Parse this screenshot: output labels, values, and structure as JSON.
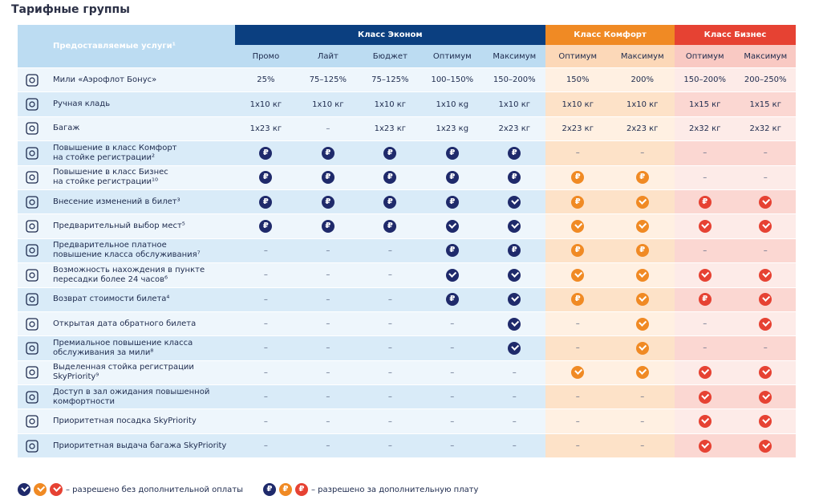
{
  "page_title": "Тарифные группы",
  "header": {
    "services_label": "Предоставляемые услуги¹",
    "groups": [
      {
        "label": "Класс Эконом",
        "span": 5,
        "color": "#0b3f80"
      },
      {
        "label": "Класс Комфорт",
        "span": 2,
        "color": "#f08a24"
      },
      {
        "label": "Класс Бизнес",
        "span": 2,
        "color": "#e64233"
      }
    ],
    "subheaders": [
      "Промо",
      "Лайт",
      "Бюджет",
      "Оптимум",
      "Максимум",
      "Оптимум",
      "Максимум",
      "Оптимум",
      "Максимум"
    ]
  },
  "rows": [
    {
      "icon": "miles-icon",
      "label": "Мили «Аэрофлот Бонус»",
      "cells": [
        "25%",
        "75–125%",
        "75–125%",
        "100–150%",
        "150–200%",
        "150%",
        "200%",
        "150–200%",
        "200–250%"
      ]
    },
    {
      "icon": "carry-on-icon",
      "label": "Ручная кладь",
      "cells": [
        "1x10 кг",
        "1x10 кг",
        "1x10 кг",
        "1x10 кg",
        "1x10 кг",
        "1x10 кг",
        "1x10 кг",
        "1x15 кг",
        "1x15 кг"
      ]
    },
    {
      "icon": "baggage-icon",
      "label": "Багаж",
      "cells": [
        "1x23 кг",
        "–",
        "1x23 кг",
        "1x23 кg",
        "2x23 кг",
        "2x23 кг",
        "2x23 кг",
        "2x32 кг",
        "2x32 кг"
      ]
    },
    {
      "icon": "comfort-upgrade-icon",
      "label": "Повышение в класс Комфорт\nна стойке регистрации²",
      "cells": [
        "P",
        "P",
        "P",
        "P",
        "P",
        "–",
        "–",
        "–",
        "–"
      ]
    },
    {
      "icon": "business-upgrade-icon",
      "label": "Повышение в класс Бизнес\nна стойке регистрации¹⁰",
      "cells": [
        "P",
        "P",
        "P",
        "P",
        "P",
        "P",
        "P",
        "–",
        "–"
      ]
    },
    {
      "icon": "ticket-change-icon",
      "label": "Внесение изменений в билет³",
      "cells": [
        "P",
        "P",
        "P",
        "P",
        "V",
        "P",
        "V",
        "P",
        "V"
      ]
    },
    {
      "icon": "seat-select-icon",
      "label": "Предварительный выбор мест⁵",
      "cells": [
        "P",
        "P",
        "P",
        "V",
        "V",
        "V",
        "V",
        "V",
        "V"
      ]
    },
    {
      "icon": "paid-upgrade-icon",
      "label": "Предварительное платное\nповышение класса обслуживания⁷",
      "cells": [
        "–",
        "–",
        "–",
        "P",
        "P",
        "P",
        "P",
        "–",
        "–"
      ]
    },
    {
      "icon": "transfer-icon",
      "label": "Возможность нахождения в пункте\nпересадки более 24 часов⁶",
      "cells": [
        "–",
        "–",
        "–",
        "V",
        "V",
        "V",
        "V",
        "V",
        "V"
      ]
    },
    {
      "icon": "refund-icon",
      "label": "Возврат стоимости билета⁴",
      "cells": [
        "–",
        "–",
        "–",
        "P",
        "V",
        "P",
        "V",
        "P",
        "V"
      ]
    },
    {
      "icon": "open-date-icon",
      "label": "Открытая дата обратного билета",
      "cells": [
        "–",
        "–",
        "–",
        "–",
        "V",
        "–",
        "V",
        "–",
        "V"
      ]
    },
    {
      "icon": "premium-upgrade-icon",
      "label": "Премиальное повышение класса\nобслуживания за мили⁸",
      "cells": [
        "–",
        "–",
        "–",
        "–",
        "V",
        "–",
        "V",
        "–",
        "–"
      ]
    },
    {
      "icon": "priority-checkin-icon",
      "label": "Выделенная стойка регистрации\nSkyPriority⁹",
      "cells": [
        "–",
        "–",
        "–",
        "–",
        "–",
        "V",
        "V",
        "V",
        "V"
      ]
    },
    {
      "icon": "lounge-icon",
      "label": "Доступ в зал ожидания повышенной\nкомфортности",
      "cells": [
        "–",
        "–",
        "–",
        "–",
        "–",
        "–",
        "–",
        "V",
        "V"
      ]
    },
    {
      "icon": "priority-boarding-icon",
      "label": "Приоритетная посадка SkyPriority",
      "cells": [
        "–",
        "–",
        "–",
        "–",
        "–",
        "–",
        "–",
        "V",
        "V"
      ]
    },
    {
      "icon": "priority-baggage-icon",
      "label": "Приоритетная выдача багажа SkyPriority",
      "cells": [
        "–",
        "–",
        "–",
        "–",
        "–",
        "–",
        "–",
        "V",
        "V"
      ]
    }
  ],
  "legend": {
    "included_text": "– разрешено без дополнительной оплаты",
    "paid_text": "– разрешено за дополнительную плату",
    "paid_symbol": "₽"
  }
}
